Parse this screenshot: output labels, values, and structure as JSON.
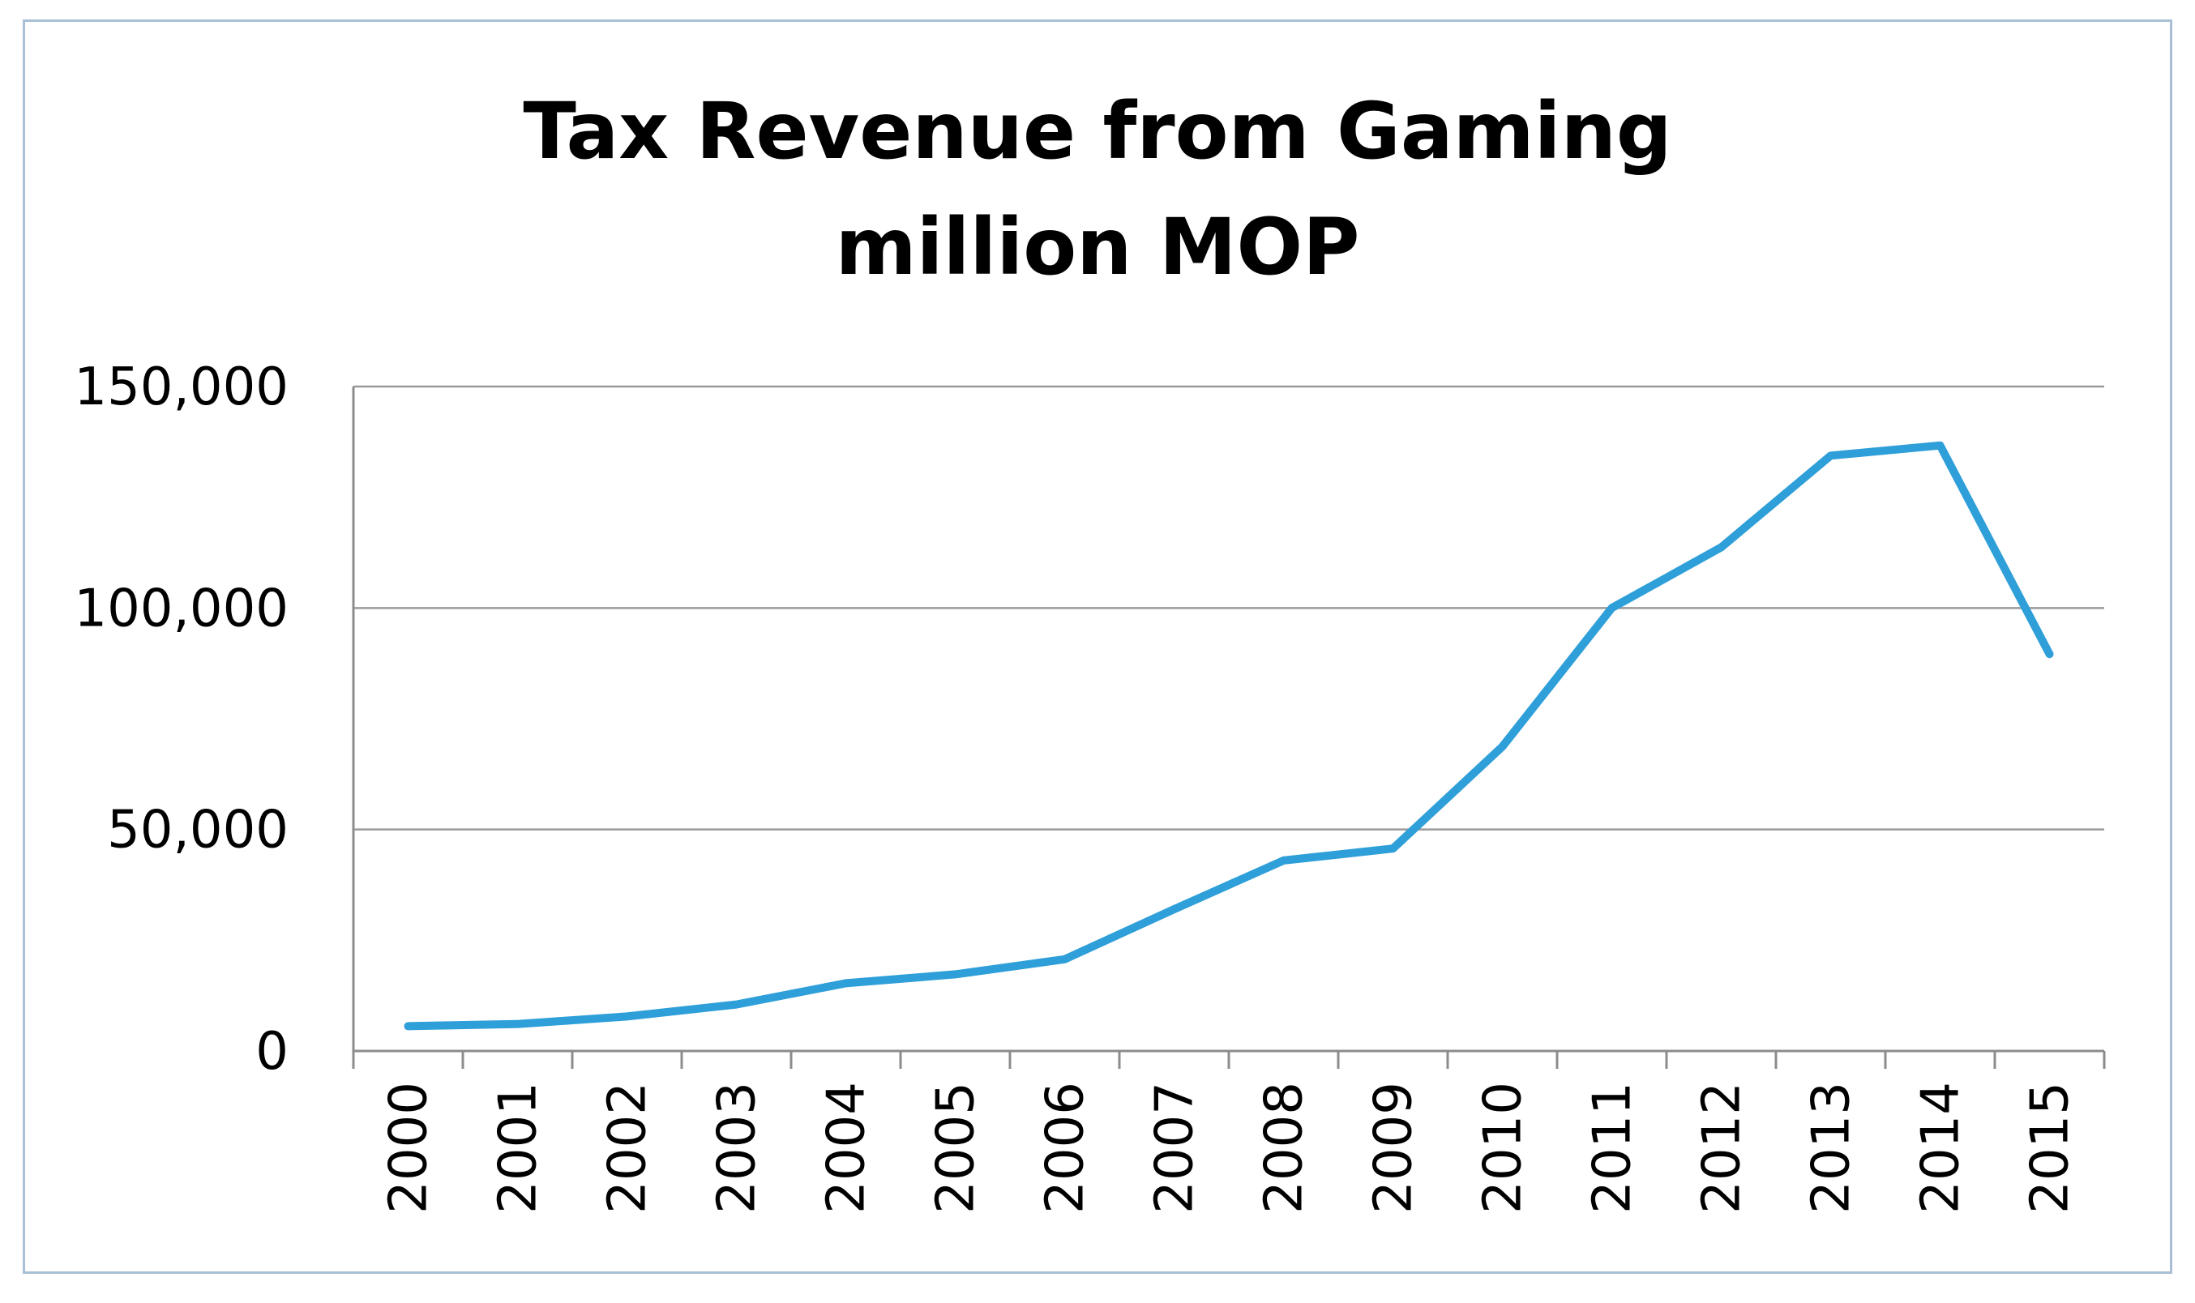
{
  "chart_data": {
    "type": "line",
    "title_lines": [
      "Tax Revenue from Gaming",
      "million MOP"
    ],
    "xlabel": "",
    "ylabel": "",
    "ylim": [
      0,
      150000
    ],
    "yticks": [
      0,
      50000,
      100000,
      150000
    ],
    "ytick_labels": [
      "0",
      "50,000",
      "100,000",
      "150,000"
    ],
    "grid": true,
    "legend": "none",
    "series_color": "#2e9fd8",
    "categories": [
      "2000",
      "2001",
      "2002",
      "2003",
      "2004",
      "2005",
      "2006",
      "2007",
      "2008",
      "2009",
      "2010",
      "2011",
      "2012",
      "2013",
      "2014",
      "2015"
    ],
    "series": [
      {
        "name": "Tax Revenue from Gaming",
        "values": [
          5600,
          6100,
          7800,
          10500,
          15300,
          17300,
          20700,
          32000,
          43000,
          45700,
          68700,
          100000,
          113700,
          134400,
          136700,
          89600
        ]
      }
    ]
  }
}
